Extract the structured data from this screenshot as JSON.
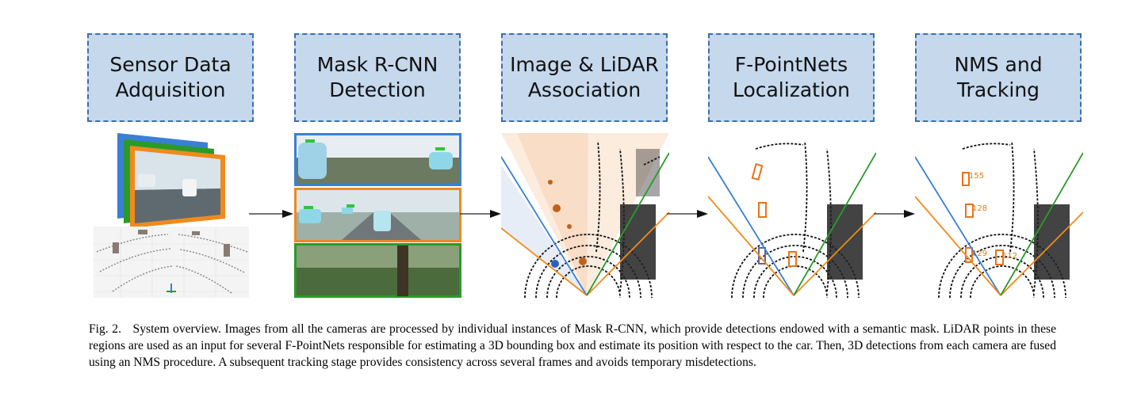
{
  "stages": [
    {
      "line1": "Sensor Data",
      "line2": "Adquisition"
    },
    {
      "line1": "Mask R-CNN",
      "line2": "Detection"
    },
    {
      "line1": "Image & LiDAR",
      "line2": "Association"
    },
    {
      "line1": "F-PointNets",
      "line2": "Localization"
    },
    {
      "line1": "NMS and",
      "line2": "Tracking"
    }
  ],
  "tracking_labels": [
    "155",
    "128",
    "129",
    "112"
  ],
  "caption": {
    "label": "Fig. 2.",
    "text": "System overview. Images from all the cameras are processed by individual instances of Mask R-CNN, which provide detections endowed with a semantic mask. LiDAR points in these regions are used as an input for several F-PointNets responsible for estimating a 3D bounding box and estimate its position with respect to the car. Then, 3D detections from each camera are fused using an NMS procedure. A subsequent tracking stage provides consistency across several frames and avoids temporary misdetections."
  },
  "colors": {
    "box_fill": "#c5d8ec",
    "box_border": "#3d6fa8",
    "blue": "#3a7fd5",
    "orange": "#f08a1c",
    "green": "#2b9a2b"
  }
}
